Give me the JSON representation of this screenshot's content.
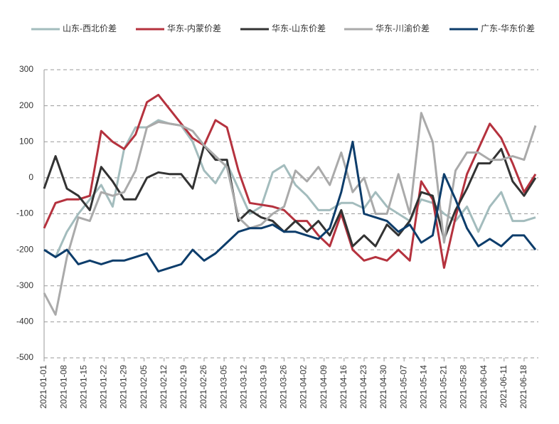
{
  "chart_data": {
    "type": "line",
    "x": [
      "2021-01-01",
      "2021-01-05",
      "2021-01-09",
      "2021-01-13",
      "2021-01-17",
      "2021-01-21",
      "2021-01-25",
      "2021-01-29",
      "2021-02-02",
      "2021-02-06",
      "2021-02-10",
      "2021-02-14",
      "2021-02-18",
      "2021-02-22",
      "2021-02-26",
      "2021-03-02",
      "2021-03-06",
      "2021-03-10",
      "2021-03-14",
      "2021-03-18",
      "2021-03-22",
      "2021-03-26",
      "2021-03-30",
      "2021-04-03",
      "2021-04-07",
      "2021-04-11",
      "2021-04-15",
      "2021-04-19",
      "2021-04-23",
      "2021-04-27",
      "2021-05-01",
      "2021-05-05",
      "2021-05-09",
      "2021-05-13",
      "2021-05-17",
      "2021-05-21",
      "2021-05-25",
      "2021-05-29",
      "2021-06-02",
      "2021-06-06",
      "2021-06-10",
      "2021-06-14",
      "2021-06-18",
      "2021-06-22"
    ],
    "series": [
      {
        "name": "山东-西北价差",
        "color": "#a3bcbd",
        "values": [
          -200,
          -220,
          -150,
          -100,
          -60,
          -20,
          -80,
          80,
          140,
          140,
          160,
          150,
          145,
          100,
          20,
          -15,
          40,
          -30,
          -100,
          -80,
          15,
          35,
          -20,
          -50,
          -90,
          -90,
          -70,
          -70,
          -85,
          -40,
          -80,
          -100,
          -120,
          -60,
          -70,
          -100,
          -120,
          -80,
          -150,
          -80,
          -40,
          -120,
          -120,
          -110
        ]
      },
      {
        "name": "华东-内蒙价差",
        "color": "#b5323e",
        "values": [
          -140,
          -70,
          -60,
          -60,
          -50,
          130,
          100,
          80,
          120,
          210,
          230,
          190,
          150,
          110,
          90,
          160,
          140,
          20,
          -70,
          -75,
          -80,
          -90,
          -120,
          -120,
          -160,
          -190,
          -100,
          -200,
          -230,
          -220,
          -230,
          -200,
          -230,
          -10,
          -60,
          -250,
          -110,
          10,
          80,
          150,
          110,
          40,
          -40,
          10
        ]
      },
      {
        "name": "华东-山东价差",
        "color": "#333333",
        "values": [
          -30,
          60,
          -30,
          -50,
          -90,
          30,
          -10,
          -60,
          -60,
          0,
          15,
          10,
          10,
          -30,
          90,
          50,
          50,
          -120,
          -90,
          -110,
          -120,
          -150,
          -120,
          -150,
          -120,
          -160,
          -90,
          -190,
          -160,
          -190,
          -130,
          -160,
          -120,
          -40,
          -50,
          -170,
          -90,
          -30,
          40,
          40,
          80,
          -10,
          -50,
          0
        ]
      },
      {
        "name": "华东-川渝价差",
        "color": "#aaaaaa",
        "values": [
          -320,
          -380,
          -220,
          -110,
          -120,
          -40,
          -50,
          -40,
          20,
          140,
          155,
          150,
          145,
          130,
          90,
          60,
          30,
          -110,
          -140,
          -130,
          -100,
          -80,
          20,
          -10,
          30,
          -20,
          70,
          -40,
          0,
          -100,
          -100,
          10,
          -100,
          180,
          100,
          -180,
          20,
          70,
          70,
          50,
          50,
          60,
          50,
          145
        ]
      },
      {
        "name": "广东-华东价差",
        "color": "#0d3d6b",
        "values": [
          -200,
          -220,
          -200,
          -240,
          -230,
          -240,
          -230,
          -230,
          -220,
          -210,
          -260,
          -250,
          -240,
          -200,
          -230,
          -210,
          -180,
          -150,
          -140,
          -140,
          -130,
          -150,
          -150,
          -160,
          -170,
          -140,
          -40,
          100,
          -100,
          -110,
          -120,
          -150,
          -130,
          -180,
          -160,
          10,
          -60,
          -140,
          -190,
          -170,
          -190,
          -160,
          -160,
          -200
        ]
      }
    ],
    "xlim": [
      "2021-01-01",
      "2021-06-23"
    ],
    "xticks": [
      "2021-01-01",
      "2021-01-08",
      "2021-01-15",
      "2021-01-22",
      "2021-01-29",
      "2021-02-05",
      "2021-02-12",
      "2021-02-19",
      "2021-02-26",
      "2021-03-05",
      "2021-03-12",
      "2021-03-19",
      "2021-03-26",
      "2021-04-02",
      "2021-04-09",
      "2021-04-16",
      "2021-04-23",
      "2021-04-30",
      "2021-05-07",
      "2021-05-14",
      "2021-05-21",
      "2021-05-28",
      "2021-06-04",
      "2021-06-11",
      "2021-06-18"
    ],
    "ylim": [
      -500,
      300
    ],
    "yticks": [
      -500,
      -400,
      -300,
      -200,
      -100,
      0,
      100,
      200,
      300
    ],
    "grid": true
  }
}
